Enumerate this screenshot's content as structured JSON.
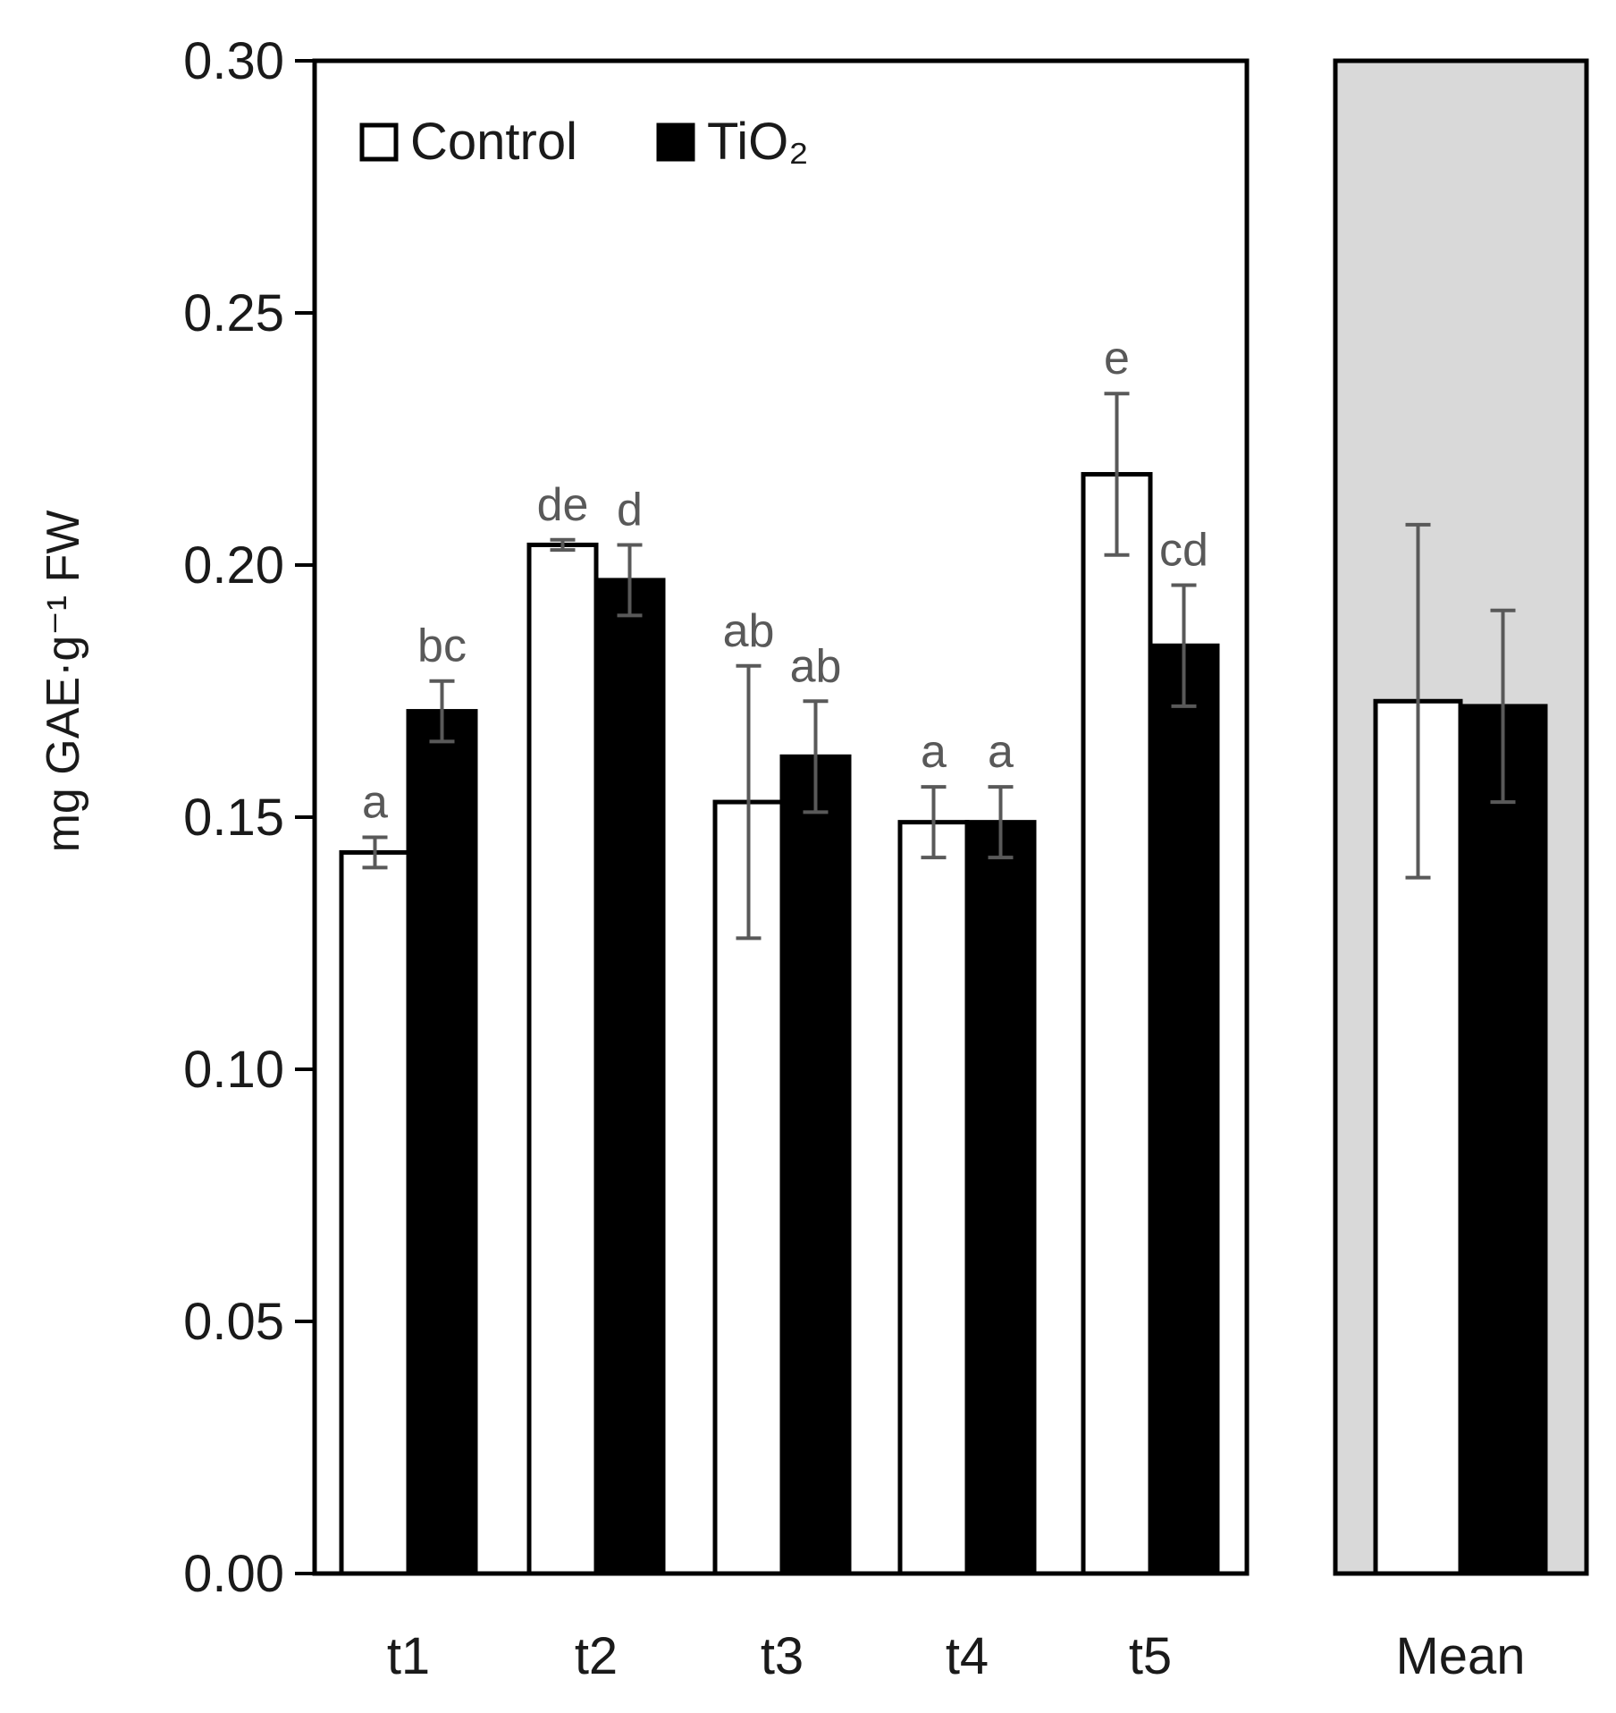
{
  "chart_data": {
    "type": "bar",
    "ylabel": "mg GAE·g⁻¹ FW",
    "ylim": [
      0,
      0.3
    ],
    "yticks": [
      "0.00",
      "0.05",
      "0.10",
      "0.15",
      "0.20",
      "0.25",
      "0.30"
    ],
    "yticks_values": [
      0,
      0.05,
      0.1,
      0.15,
      0.2,
      0.25,
      0.3
    ],
    "legend": {
      "placement": "top-left",
      "entries": [
        "Control",
        "TiO₂"
      ]
    },
    "series_colors": {
      "Control": "#ffffff",
      "TiO₂": "#000000"
    },
    "panel_background": {
      "main": "#ffffff",
      "mean": "#d9d9d9"
    },
    "errorbar_color": "#595959",
    "panels": [
      {
        "name": "main",
        "categories": [
          "t1",
          "t2",
          "t3",
          "t4",
          "t5"
        ],
        "series": [
          {
            "name": "Control",
            "values": [
              0.143,
              0.204,
              0.153,
              0.149,
              0.218
            ],
            "errors": [
              0.003,
              0.001,
              0.027,
              0.007,
              0.016
            ],
            "letters": [
              "a",
              "de",
              "ab",
              "a",
              "e"
            ]
          },
          {
            "name": "TiO₂",
            "values": [
              0.171,
              0.197,
              0.162,
              0.149,
              0.184
            ],
            "errors": [
              0.006,
              0.007,
              0.011,
              0.007,
              0.012
            ],
            "letters": [
              "bc",
              "d",
              "ab",
              "a",
              "cd"
            ]
          }
        ]
      },
      {
        "name": "mean",
        "categories": [
          "Mean"
        ],
        "series": [
          {
            "name": "Control",
            "values": [
              0.173
            ],
            "errors": [
              0.035
            ],
            "letters": [
              ""
            ]
          },
          {
            "name": "TiO₂",
            "values": [
              0.172
            ],
            "errors": [
              0.019
            ],
            "letters": [
              ""
            ]
          }
        ]
      }
    ]
  }
}
